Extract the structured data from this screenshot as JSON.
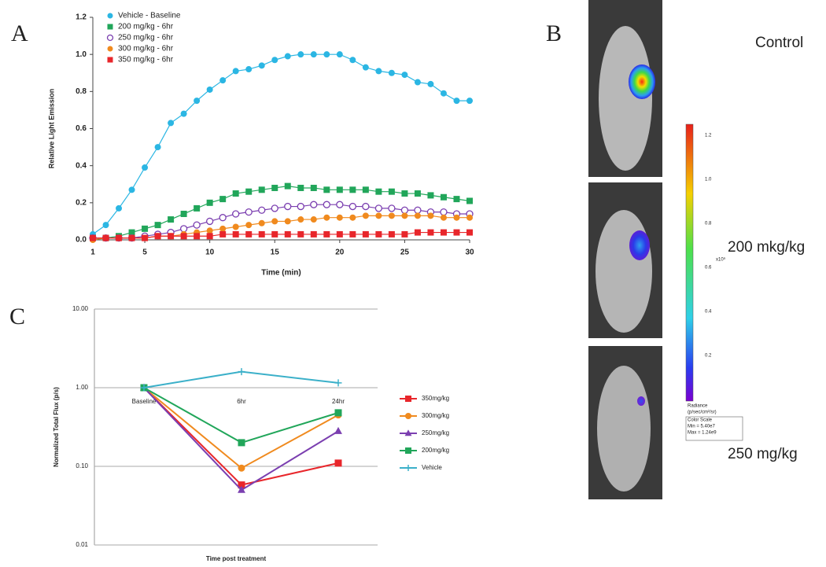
{
  "panels": {
    "a": "A",
    "b": "B",
    "c": "C"
  },
  "chart_data": [
    {
      "type": "line",
      "x_label": "Time (min)",
      "y_label": "Relative Light Emission",
      "x": [
        1,
        2,
        3,
        4,
        5,
        6,
        7,
        8,
        9,
        10,
        11,
        12,
        13,
        14,
        15,
        16,
        17,
        18,
        19,
        20,
        21,
        22,
        23,
        24,
        25,
        26,
        27,
        28,
        29,
        30
      ],
      "xlim": [
        1,
        30
      ],
      "xticks": [
        1,
        5,
        10,
        15,
        20,
        25,
        30
      ],
      "ylim": [
        0,
        1.2
      ],
      "yticks": [
        {
          "value": 0,
          "label": "0.0"
        },
        {
          "value": 0.2,
          "label": "0.2"
        },
        {
          "value": 0.4,
          "label": "0.4"
        },
        {
          "value": 0.6,
          "label": "0.6"
        },
        {
          "value": 0.8,
          "label": "0.8"
        },
        {
          "value": 1,
          "label": "1.0"
        },
        {
          "value": 1.2,
          "label": "1.2"
        }
      ],
      "grid": false,
      "legend": "upper left",
      "series": [
        {
          "name": "Vehicle - Baseline",
          "color": "#2bb6e3",
          "marker": "circle",
          "values": [
            0.03,
            0.08,
            0.17,
            0.27,
            0.39,
            0.5,
            0.63,
            0.68,
            0.75,
            0.81,
            0.86,
            0.91,
            0.92,
            0.94,
            0.97,
            0.99,
            1.0,
            1.0,
            1.0,
            1.0,
            0.97,
            0.93,
            0.91,
            0.9,
            0.89,
            0.85,
            0.84,
            0.79,
            0.75,
            0.75
          ]
        },
        {
          "name": "200 mg/kg - 6hr",
          "color": "#21a65a",
          "marker": "square",
          "values": [
            0.01,
            0.01,
            0.02,
            0.04,
            0.06,
            0.08,
            0.11,
            0.14,
            0.17,
            0.2,
            0.22,
            0.25,
            0.26,
            0.27,
            0.28,
            0.29,
            0.28,
            0.28,
            0.27,
            0.27,
            0.27,
            0.27,
            0.26,
            0.26,
            0.25,
            0.25,
            0.24,
            0.23,
            0.22,
            0.21
          ]
        },
        {
          "name": "250 mg/kg - 6hr",
          "color": "#7b3fb0",
          "marker": "open-circle",
          "values": [
            0.01,
            0.01,
            0.01,
            0.01,
            0.02,
            0.03,
            0.04,
            0.06,
            0.08,
            0.1,
            0.12,
            0.14,
            0.15,
            0.16,
            0.17,
            0.18,
            0.18,
            0.19,
            0.19,
            0.19,
            0.18,
            0.18,
            0.17,
            0.17,
            0.16,
            0.16,
            0.15,
            0.15,
            0.14,
            0.14
          ]
        },
        {
          "name": "300 mg/kg - 6hr",
          "color": "#f08a1e",
          "marker": "circle",
          "values": [
            0,
            0.01,
            0.01,
            0.01,
            0.01,
            0.02,
            0.02,
            0.03,
            0.04,
            0.05,
            0.06,
            0.07,
            0.08,
            0.09,
            0.1,
            0.1,
            0.11,
            0.11,
            0.12,
            0.12,
            0.12,
            0.13,
            0.13,
            0.13,
            0.13,
            0.13,
            0.13,
            0.12,
            0.12,
            0.12
          ]
        },
        {
          "name": "350 mg/kg - 6hr",
          "color": "#e8262b",
          "marker": "square",
          "values": [
            0.01,
            0.01,
            0.01,
            0.01,
            0.01,
            0.02,
            0.02,
            0.02,
            0.02,
            0.02,
            0.03,
            0.03,
            0.03,
            0.03,
            0.03,
            0.03,
            0.03,
            0.03,
            0.03,
            0.03,
            0.03,
            0.03,
            0.03,
            0.03,
            0.03,
            0.04,
            0.04,
            0.04,
            0.04,
            0.04
          ]
        }
      ]
    },
    {
      "type": "line",
      "x_label": "Time post treatment",
      "y_label": "Normalized Total Flux (p/s)",
      "categories": [
        "Baseline",
        "6hr",
        "24hr"
      ],
      "log_y": true,
      "ylim": [
        0.01,
        10
      ],
      "yticks": [
        {
          "value": 0.01,
          "label": "0.01"
        },
        {
          "value": 0.1,
          "label": "0.10"
        },
        {
          "value": 1,
          "label": "1.00"
        },
        {
          "value": 10,
          "label": "10.00"
        }
      ],
      "grid": true,
      "legend": "right",
      "series": [
        {
          "name": "350mg/kg",
          "color": "#e8262b",
          "marker": "square",
          "values": [
            1,
            0.058,
            0.11
          ]
        },
        {
          "name": "300mg/kg",
          "color": "#f08a1e",
          "marker": "circle",
          "values": [
            1,
            0.095,
            0.45
          ]
        },
        {
          "name": "250mg/kg",
          "color": "#7b3fb0",
          "marker": "triangle",
          "values": [
            1,
            0.05,
            0.28
          ]
        },
        {
          "name": "200mg/kg",
          "color": "#21a65a",
          "marker": "square",
          "values": [
            1,
            0.2,
            0.48
          ]
        },
        {
          "name": "Vehicle",
          "color": "#3bb0c9",
          "marker": "plus",
          "values": [
            1,
            1.6,
            1.15
          ]
        }
      ]
    }
  ],
  "panel_b": {
    "images": [
      "Control",
      "200 mkg/kg",
      "250 mg/kg"
    ],
    "colorbar": {
      "ticks": [
        "1.2",
        "1.0",
        "0.8",
        "0.6",
        "0.4",
        "0.2"
      ],
      "unit": "x10⁹",
      "notes": [
        "Radiance",
        "(p/sec/cm²/sr)",
        "Color Scale",
        "Min = 5.40e7",
        "Max = 1.24e9"
      ]
    }
  }
}
